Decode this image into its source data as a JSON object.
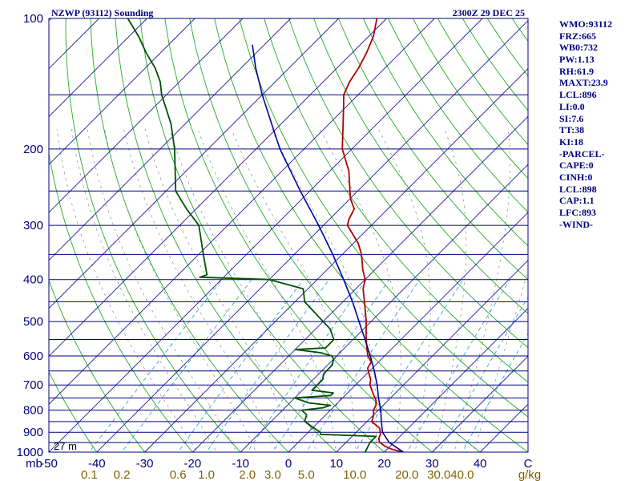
{
  "header": {
    "station": "NZWP (93112) Sounding",
    "time": "2300Z 29 DEC 25"
  },
  "indices": [
    "WMO:93112",
    "FRZ:665",
    "WB0:732",
    "PW:1.13",
    "RH:61.9",
    "MAXT:23.9",
    "LCL:896",
    "LI:0.0",
    "SI:7.6",
    "TT:38",
    "KI:18",
    "-PARCEL-",
    "CAPE:0",
    "CINH:0",
    "LCL:898",
    "CAP:1.1",
    "LFC:893",
    "-WIND-"
  ],
  "chart_data": {
    "type": "line",
    "title": "NZWP (93112) Sounding",
    "subtitle": "2300Z 29 DEC 25",
    "x_unit": "C",
    "y_unit": "mb",
    "pressure_labels": [
      "100",
      "200",
      "300",
      "400",
      "500",
      "600",
      "700",
      "800",
      "900",
      "1000"
    ],
    "pressure_levels": [
      100,
      150,
      200,
      250,
      300,
      350,
      400,
      450,
      500,
      550,
      600,
      650,
      700,
      750,
      800,
      850,
      900,
      950,
      1000
    ],
    "ylim": [
      1000,
      100
    ],
    "xlim": [
      -50,
      50
    ],
    "temperature_ticks": [
      -50,
      -40,
      -30,
      -20,
      -10,
      0,
      10,
      20,
      30,
      40,
      50
    ],
    "temperature_tick_labels": [
      "-50",
      "-40",
      "-30",
      "-20",
      "-10",
      "0",
      "10",
      "20",
      "30",
      "40",
      "C"
    ],
    "mixing_ratio_labels": [
      "0.1",
      "0.2",
      "0.6",
      "1.0",
      "2.0",
      "3.0",
      "5.0",
      "10.0",
      "20.0",
      "30.0",
      "40.0",
      "g/kg"
    ],
    "elevation_label": "27 m",
    "colors": {
      "isobar": "#000080",
      "isotherm": "#1a1aa0",
      "dry_adiabat": "#22aa22",
      "moist_adiabat": "#888888",
      "mixing_ratio": "#33aacc",
      "temperature": "#b00000",
      "dewpoint": "#005000",
      "parcel": "#0000a0"
    },
    "series": [
      {
        "key": "temperature",
        "points": [
          [
            1000,
            24
          ],
          [
            985,
            21
          ],
          [
            970,
            19
          ],
          [
            950,
            17
          ],
          [
            930,
            16
          ],
          [
            910,
            15.5
          ],
          [
            900,
            15
          ],
          [
            880,
            14
          ],
          [
            860,
            12
          ],
          [
            850,
            11
          ],
          [
            820,
            10
          ],
          [
            800,
            9
          ],
          [
            780,
            8.5
          ],
          [
            760,
            7.5
          ],
          [
            740,
            6
          ],
          [
            720,
            4.5
          ],
          [
            700,
            3
          ],
          [
            680,
            2
          ],
          [
            660,
            0.5
          ],
          [
            640,
            -1
          ],
          [
            620,
            -1.5
          ],
          [
            600,
            -3.5
          ],
          [
            580,
            -5
          ],
          [
            560,
            -6.5
          ],
          [
            540,
            -8
          ],
          [
            500,
            -11
          ],
          [
            450,
            -15.5
          ],
          [
            420,
            -18.5
          ],
          [
            400,
            -20
          ],
          [
            380,
            -22.5
          ],
          [
            350,
            -26
          ],
          [
            330,
            -29
          ],
          [
            300,
            -35
          ],
          [
            290,
            -36
          ],
          [
            275,
            -37
          ],
          [
            260,
            -40
          ],
          [
            225,
            -46
          ],
          [
            200,
            -52
          ],
          [
            180,
            -56
          ],
          [
            160,
            -60.5
          ],
          [
            150,
            -63
          ],
          [
            140,
            -64.5
          ],
          [
            130,
            -65.5
          ],
          [
            120,
            -67
          ],
          [
            110,
            -69
          ],
          [
            100,
            -72
          ]
        ]
      },
      {
        "key": "dewpoint",
        "points": [
          [
            1000,
            16
          ],
          [
            950,
            15
          ],
          [
            920,
            15
          ],
          [
            910,
            3
          ],
          [
            900,
            2.5
          ],
          [
            850,
            -3
          ],
          [
            820,
            -4
          ],
          [
            800,
            -6
          ],
          [
            790,
            -2
          ],
          [
            780,
            -1
          ],
          [
            770,
            -6
          ],
          [
            750,
            -10
          ],
          [
            740,
            -3
          ],
          [
            730,
            -3
          ],
          [
            720,
            -8
          ],
          [
            700,
            -8
          ],
          [
            680,
            -8
          ],
          [
            660,
            -9
          ],
          [
            650,
            -9
          ],
          [
            630,
            -9
          ],
          [
            610,
            -10
          ],
          [
            600,
            -11
          ],
          [
            590,
            -14
          ],
          [
            580,
            -20
          ],
          [
            575,
            -14
          ],
          [
            550,
            -14
          ],
          [
            520,
            -17
          ],
          [
            500,
            -20
          ],
          [
            450,
            -28
          ],
          [
            420,
            -31
          ],
          [
            400,
            -40
          ],
          [
            395,
            -55
          ],
          [
            390,
            -54
          ],
          [
            350,
            -59
          ],
          [
            300,
            -66
          ],
          [
            275,
            -72
          ],
          [
            250,
            -78
          ],
          [
            200,
            -87
          ],
          [
            175,
            -93
          ],
          [
            150,
            -101
          ],
          [
            140,
            -104
          ],
          [
            130,
            -108
          ],
          [
            120,
            -113
          ],
          [
            110,
            -118
          ],
          [
            100,
            -124
          ]
        ]
      },
      {
        "key": "parcel",
        "points": [
          [
            1000,
            24
          ],
          [
            950,
            19
          ],
          [
            900,
            15.5
          ],
          [
            850,
            13
          ],
          [
            800,
            10.5
          ],
          [
            750,
            7.5
          ],
          [
            700,
            4.5
          ],
          [
            650,
            1
          ],
          [
            600,
            -3
          ],
          [
            550,
            -7.5
          ],
          [
            500,
            -12.5
          ],
          [
            450,
            -18
          ],
          [
            400,
            -24.5
          ],
          [
            350,
            -32
          ],
          [
            300,
            -41
          ],
          [
            250,
            -52
          ],
          [
            200,
            -65
          ],
          [
            175,
            -72
          ],
          [
            150,
            -80
          ],
          [
            130,
            -87
          ],
          [
            115,
            -92.5
          ]
        ]
      }
    ],
    "grid": true,
    "legend": "none"
  }
}
